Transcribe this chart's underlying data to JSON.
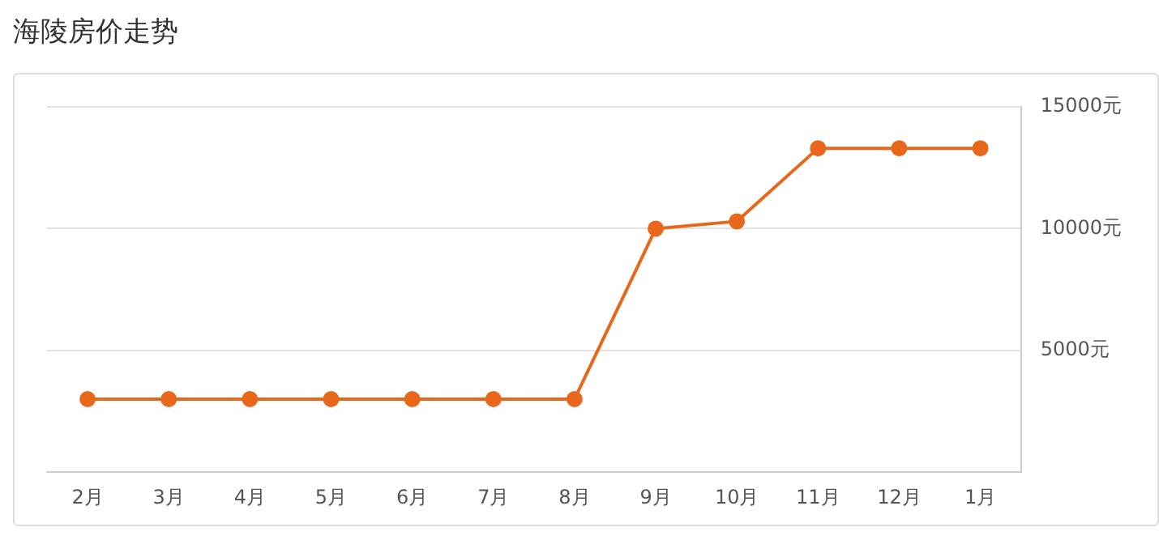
{
  "chart_data": {
    "type": "line",
    "title": "海陵房价走势",
    "categories": [
      "2月",
      "3月",
      "4月",
      "5月",
      "6月",
      "7月",
      "8月",
      "9月",
      "10月",
      "11月",
      "12月",
      "1月"
    ],
    "series": [
      {
        "color": "#e8671b",
        "values": [
          3000,
          3000,
          3000,
          3000,
          3000,
          3000,
          3000,
          10000,
          10300,
          13300,
          13300,
          13300
        ]
      }
    ],
    "ylim": [
      0,
      15000
    ],
    "yticks": [
      {
        "value": 0,
        "label": null
      },
      {
        "value": 5000,
        "label": "5000元"
      },
      {
        "value": 10000,
        "label": "10000元"
      },
      {
        "value": 15000,
        "label": "15000元"
      }
    ],
    "grid": "y",
    "marker": "circle",
    "legend": false
  }
}
